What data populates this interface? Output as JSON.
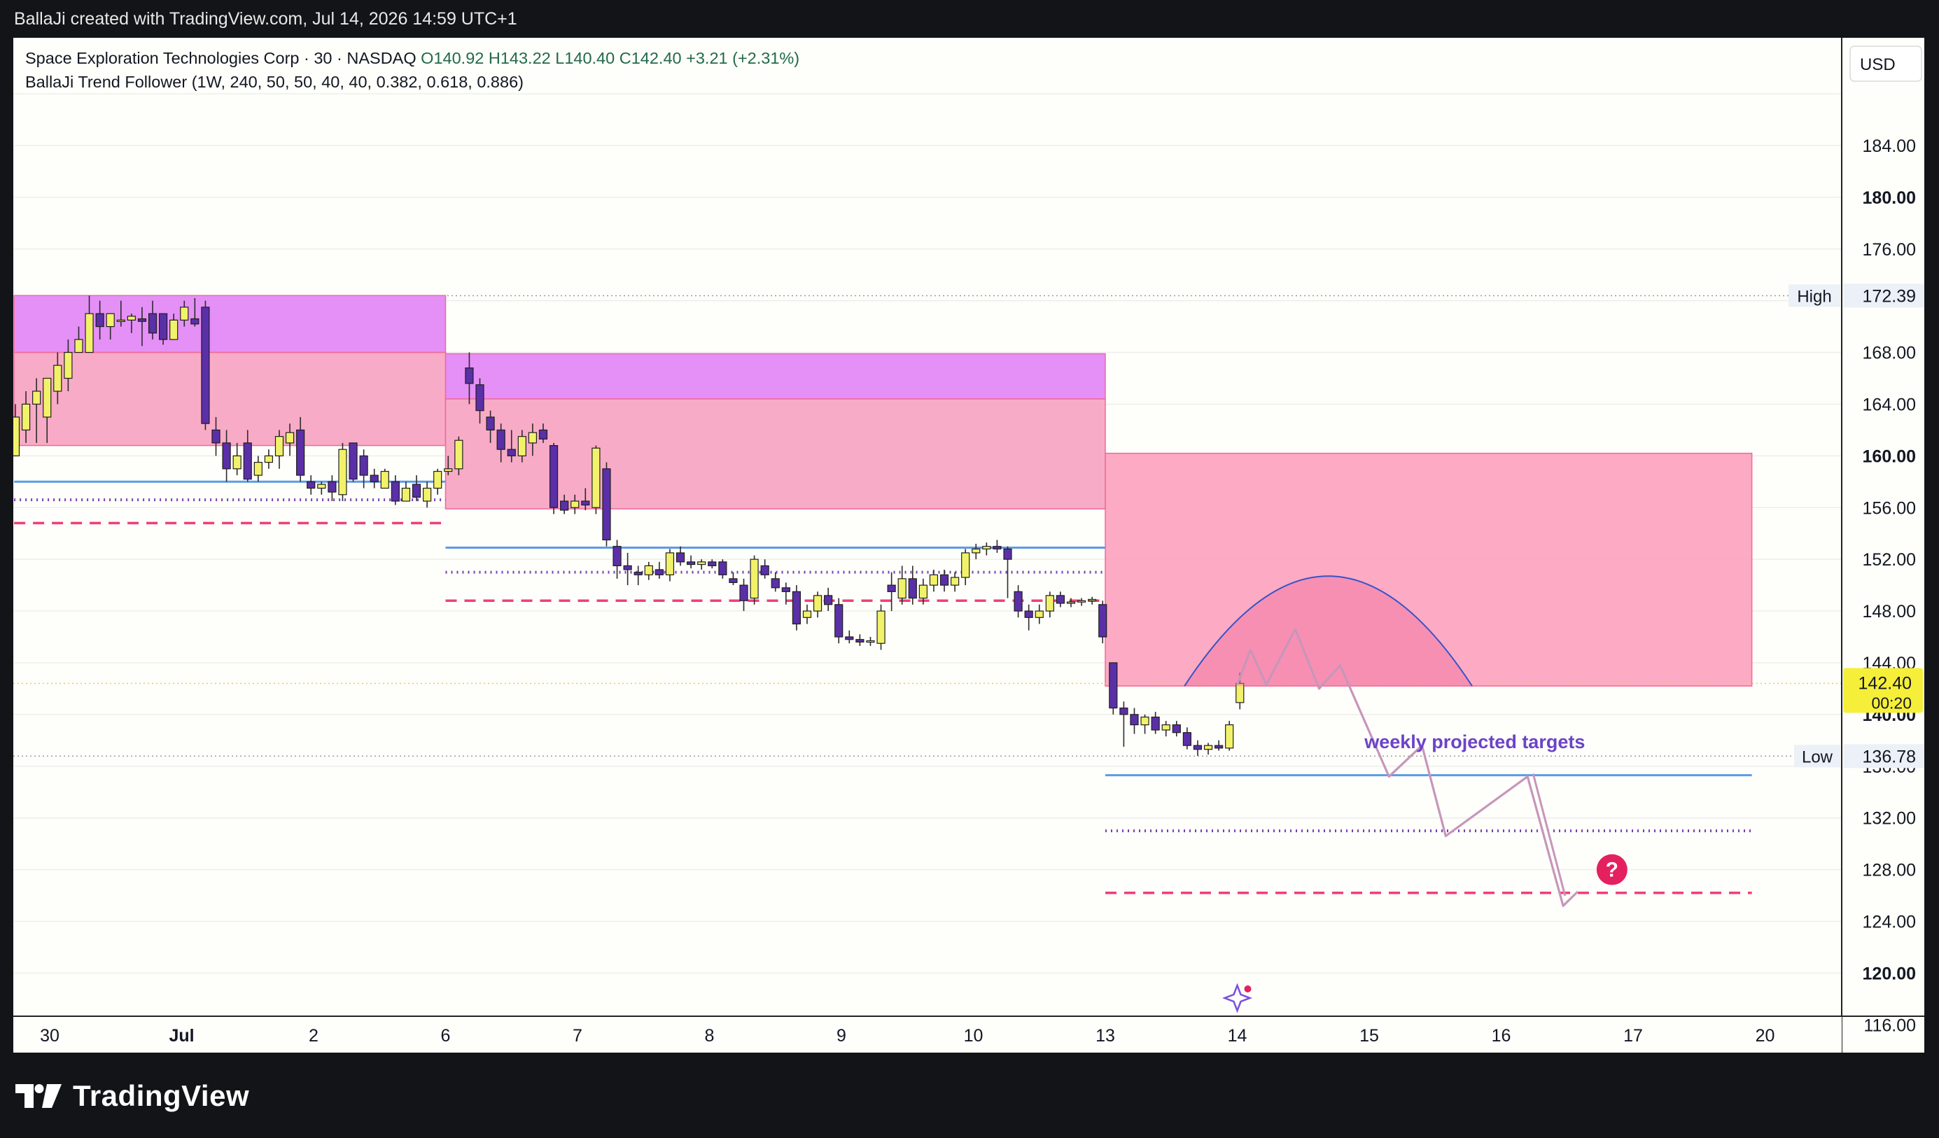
{
  "header": {
    "attribution": "BallaJi created with TradingView.com, Jul 14, 2026 14:59 UTC+1"
  },
  "legend": {
    "symbol": "Space Exploration Technologies Corp · 30 · NASDAQ",
    "open": "O140.92",
    "high": "H143.22",
    "low": "L140.40",
    "close": "C142.40",
    "change": "+3.21 (+2.31%)",
    "indicator": "BallaJi Trend Follower (1W, 240, 50, 50, 40, 40, 0.382, 0.618, 0.886)"
  },
  "currency_button": "USD",
  "footer": {
    "brand": "TradingView"
  },
  "chart_data": {
    "type": "candlestick",
    "currency": "USD",
    "ylim": [
      114,
      190
    ],
    "y_ticks": [
      {
        "value": 184,
        "label": "184.00",
        "bold": false
      },
      {
        "value": 180,
        "label": "180.00",
        "bold": true
      },
      {
        "value": 176,
        "label": "176.00",
        "bold": false
      },
      {
        "value": 168,
        "label": "168.00",
        "bold": false
      },
      {
        "value": 164,
        "label": "164.00",
        "bold": false
      },
      {
        "value": 160,
        "label": "160.00",
        "bold": true
      },
      {
        "value": 156,
        "label": "156.00",
        "bold": false
      },
      {
        "value": 152,
        "label": "152.00",
        "bold": false
      },
      {
        "value": 148,
        "label": "148.00",
        "bold": false
      },
      {
        "value": 144,
        "label": "144.00",
        "bold": false
      },
      {
        "value": 140,
        "label": "140.00",
        "bold": true
      },
      {
        "value": 136,
        "label": "136.00",
        "bold": false
      },
      {
        "value": 132,
        "label": "132.00",
        "bold": false
      },
      {
        "value": 128,
        "label": "128.00",
        "bold": false
      },
      {
        "value": 124,
        "label": "124.00",
        "bold": false
      },
      {
        "value": 120,
        "label": "120.00",
        "bold": true
      },
      {
        "value": 116,
        "label": "116.00",
        "bold": false
      }
    ],
    "x_ticks": [
      {
        "t": 0,
        "label": "30",
        "bold": false
      },
      {
        "t": 1,
        "label": "Jul",
        "bold": true
      },
      {
        "t": 2,
        "label": "2",
        "bold": false
      },
      {
        "t": 3,
        "label": "6",
        "bold": false
      },
      {
        "t": 4,
        "label": "7",
        "bold": false
      },
      {
        "t": 5,
        "label": "8",
        "bold": false
      },
      {
        "t": 6,
        "label": "9",
        "bold": false
      },
      {
        "t": 7,
        "label": "10",
        "bold": false
      },
      {
        "t": 8,
        "label": "13",
        "bold": false
      },
      {
        "t": 9,
        "label": "14",
        "bold": false
      },
      {
        "t": 10,
        "label": "15",
        "bold": false
      },
      {
        "t": 11,
        "label": "16",
        "bold": false
      },
      {
        "t": 12,
        "label": "17",
        "bold": false
      },
      {
        "t": 13,
        "label": "20",
        "bold": false
      }
    ],
    "high_marker": {
      "label": "High",
      "value": 172.39,
      "value_label": "172.39"
    },
    "low_marker": {
      "label": "Low",
      "value": 136.78,
      "value_label": "136.78"
    },
    "last_price": {
      "value": 142.4,
      "value_label": "142.40",
      "countdown": "00:20"
    },
    "zones": [
      {
        "t0": -0.27,
        "t1": 3.0,
        "top": 172.4,
        "bottom": 168.0,
        "color": "#e38af5"
      },
      {
        "t0": -0.27,
        "t1": 3.0,
        "top": 168.0,
        "bottom": 160.8,
        "color": "#f8a6c3"
      },
      {
        "t0": 3.0,
        "t1": 8.0,
        "top": 167.9,
        "bottom": 164.4,
        "color": "#e38af5"
      },
      {
        "t0": 3.0,
        "t1": 8.0,
        "top": 164.4,
        "bottom": 155.9,
        "color": "#f8a6c3"
      },
      {
        "t0": 8.0,
        "t1": 12.9,
        "top": 160.2,
        "bottom": 142.2,
        "color": "#fda5c1"
      }
    ],
    "levels": [
      {
        "t0": -0.27,
        "t1": 3.0,
        "value": 158.0,
        "style": "solid",
        "color": "#5b9be8"
      },
      {
        "t0": -0.27,
        "t1": 3.0,
        "value": 156.6,
        "style": "dotted",
        "color": "#7a3db8"
      },
      {
        "t0": -0.27,
        "t1": 3.0,
        "value": 154.8,
        "style": "dashed",
        "color": "#ef3f78"
      },
      {
        "t0": 3.0,
        "t1": 8.0,
        "value": 152.9,
        "style": "solid",
        "color": "#5b9be8"
      },
      {
        "t0": 3.0,
        "t1": 8.0,
        "value": 151.0,
        "style": "dotted",
        "color": "#7a3db8"
      },
      {
        "t0": 3.0,
        "t1": 8.0,
        "value": 148.8,
        "style": "dashed",
        "color": "#ef3f78"
      },
      {
        "t0": 8.0,
        "t1": 12.9,
        "value": 135.3,
        "style": "solid",
        "color": "#5b9be8"
      },
      {
        "t0": 8.0,
        "t1": 12.9,
        "value": 131.0,
        "style": "dotted",
        "color": "#7a3db8"
      },
      {
        "t0": 8.0,
        "t1": 12.9,
        "value": 126.2,
        "style": "dashed",
        "color": "#ef3f78"
      }
    ],
    "annotation": {
      "text": "weekly projected targets",
      "t": 10.8,
      "value": 137.4,
      "color": "#6b43c8"
    },
    "arc": {
      "t0": 8.6,
      "t1": 10.78,
      "base": 142.2,
      "peak": 150.7,
      "color": "#3554c8"
    },
    "projection_path": [
      {
        "t": 9.0,
        "v": 142.3
      },
      {
        "t": 9.1,
        "v": 145.0
      },
      {
        "t": 9.22,
        "v": 142.3
      },
      {
        "t": 9.44,
        "v": 146.6
      },
      {
        "t": 9.62,
        "v": 142.0
      },
      {
        "t": 9.78,
        "v": 143.8
      },
      {
        "t": 10.15,
        "v": 135.2
      },
      {
        "t": 10.4,
        "v": 137.6
      },
      {
        "t": 10.58,
        "v": 130.6
      },
      {
        "t": 11.2,
        "v": 135.2
      },
      {
        "t": 11.47,
        "v": 125.2
      },
      {
        "t": 11.58,
        "v": 126.3
      }
    ],
    "question_marker": {
      "text": "?",
      "t": 11.84,
      "value": 128.0
    },
    "candles": [
      {
        "t": -0.26,
        "o": 160,
        "h": 164,
        "l": 160,
        "c": 163
      },
      {
        "t": -0.18,
        "o": 162,
        "h": 165,
        "l": 161,
        "c": 164
      },
      {
        "t": -0.1,
        "o": 164,
        "h": 166,
        "l": 161,
        "c": 165
      },
      {
        "t": -0.02,
        "o": 163,
        "h": 166,
        "l": 161,
        "c": 166
      },
      {
        "t": 0.06,
        "o": 165,
        "h": 168,
        "l": 164,
        "c": 167
      },
      {
        "t": 0.14,
        "o": 166,
        "h": 169,
        "l": 165,
        "c": 168
      },
      {
        "t": 0.22,
        "o": 168,
        "h": 170,
        "l": 168,
        "c": 169
      },
      {
        "t": 0.3,
        "o": 168,
        "h": 172.4,
        "l": 168,
        "c": 171
      },
      {
        "t": 0.38,
        "o": 171,
        "h": 172,
        "l": 169,
        "c": 170
      },
      {
        "t": 0.46,
        "o": 170,
        "h": 171,
        "l": 169,
        "c": 171
      },
      {
        "t": 0.54,
        "o": 170.5,
        "h": 172,
        "l": 170,
        "c": 170.5
      },
      {
        "t": 0.62,
        "o": 170.5,
        "h": 171,
        "l": 169.5,
        "c": 170.8
      },
      {
        "t": 0.7,
        "o": 170.6,
        "h": 171.5,
        "l": 168.5,
        "c": 170.4
      },
      {
        "t": 0.78,
        "o": 171,
        "h": 172,
        "l": 169,
        "c": 169.5
      },
      {
        "t": 0.86,
        "o": 171,
        "h": 171,
        "l": 168.6,
        "c": 169
      },
      {
        "t": 0.94,
        "o": 169,
        "h": 171,
        "l": 169,
        "c": 170.5
      },
      {
        "t": 1.02,
        "o": 170.5,
        "h": 172,
        "l": 170,
        "c": 171.5
      },
      {
        "t": 1.1,
        "o": 170.6,
        "h": 172.2,
        "l": 170,
        "c": 170.2
      },
      {
        "t": 1.18,
        "o": 171.5,
        "h": 172,
        "l": 162,
        "c": 162.5
      },
      {
        "t": 1.26,
        "o": 162,
        "h": 163,
        "l": 160,
        "c": 161
      },
      {
        "t": 1.34,
        "o": 161,
        "h": 162,
        "l": 158,
        "c": 159
      },
      {
        "t": 1.42,
        "o": 159,
        "h": 161,
        "l": 158.5,
        "c": 160
      },
      {
        "t": 1.5,
        "o": 161,
        "h": 162,
        "l": 158,
        "c": 158.2
      },
      {
        "t": 1.58,
        "o": 158.5,
        "h": 160,
        "l": 158,
        "c": 159.5
      },
      {
        "t": 1.66,
        "o": 159.5,
        "h": 160.5,
        "l": 159,
        "c": 160
      },
      {
        "t": 1.74,
        "o": 160,
        "h": 162,
        "l": 159,
        "c": 161.5
      },
      {
        "t": 1.82,
        "o": 161,
        "h": 162.5,
        "l": 160,
        "c": 161.8
      },
      {
        "t": 1.9,
        "o": 162,
        "h": 163,
        "l": 158,
        "c": 158.5
      },
      {
        "t": 1.98,
        "o": 158,
        "h": 158.5,
        "l": 157,
        "c": 157.5
      },
      {
        "t": 2.06,
        "o": 157.5,
        "h": 158,
        "l": 157,
        "c": 157.8
      },
      {
        "t": 2.14,
        "o": 158,
        "h": 158.5,
        "l": 156.5,
        "c": 157.2
      },
      {
        "t": 2.22,
        "o": 157,
        "h": 161,
        "l": 156.5,
        "c": 160.5
      },
      {
        "t": 2.3,
        "o": 161,
        "h": 161,
        "l": 158,
        "c": 158.2
      },
      {
        "t": 2.38,
        "o": 160,
        "h": 160.5,
        "l": 157.5,
        "c": 158.5
      },
      {
        "t": 2.46,
        "o": 158.5,
        "h": 159,
        "l": 157.5,
        "c": 158
      },
      {
        "t": 2.54,
        "o": 157.5,
        "h": 159,
        "l": 157.5,
        "c": 158.8
      },
      {
        "t": 2.62,
        "o": 158,
        "h": 158.5,
        "l": 156.2,
        "c": 156.5
      },
      {
        "t": 2.7,
        "o": 156.5,
        "h": 158,
        "l": 156.5,
        "c": 157.5
      },
      {
        "t": 2.78,
        "o": 157.8,
        "h": 158.5,
        "l": 156.5,
        "c": 156.8
      },
      {
        "t": 2.86,
        "o": 156.5,
        "h": 158,
        "l": 156,
        "c": 157.5
      },
      {
        "t": 2.94,
        "o": 157.5,
        "h": 159,
        "l": 157,
        "c": 158.8
      },
      {
        "t": 3.02,
        "o": 158.8,
        "h": 160,
        "l": 158.5,
        "c": 159
      },
      {
        "t": 3.1,
        "o": 159,
        "h": 161.5,
        "l": 158.5,
        "c": 161.2
      },
      {
        "t": 3.18,
        "o": 166.8,
        "h": 168,
        "l": 164,
        "c": 165.6
      },
      {
        "t": 3.26,
        "o": 165.5,
        "h": 166,
        "l": 162.5,
        "c": 163.5
      },
      {
        "t": 3.34,
        "o": 163,
        "h": 163.5,
        "l": 161,
        "c": 162
      },
      {
        "t": 3.42,
        "o": 162,
        "h": 162.5,
        "l": 159.5,
        "c": 160.5
      },
      {
        "t": 3.5,
        "o": 160.5,
        "h": 162,
        "l": 159.5,
        "c": 160
      },
      {
        "t": 3.58,
        "o": 160,
        "h": 162,
        "l": 159.5,
        "c": 161.5
      },
      {
        "t": 3.66,
        "o": 161,
        "h": 162.5,
        "l": 160,
        "c": 161.8
      },
      {
        "t": 3.74,
        "o": 162,
        "h": 162.5,
        "l": 161,
        "c": 161.3
      },
      {
        "t": 3.82,
        "o": 160.8,
        "h": 161,
        "l": 155.5,
        "c": 156
      },
      {
        "t": 3.9,
        "o": 156.5,
        "h": 157,
        "l": 155.5,
        "c": 155.8
      },
      {
        "t": 3.98,
        "o": 156,
        "h": 157,
        "l": 155.5,
        "c": 156.5
      },
      {
        "t": 4.06,
        "o": 156.5,
        "h": 157.5,
        "l": 155.8,
        "c": 156.2
      },
      {
        "t": 4.14,
        "o": 156,
        "h": 160.8,
        "l": 155.5,
        "c": 160.6
      },
      {
        "t": 4.22,
        "o": 159,
        "h": 159.5,
        "l": 153,
        "c": 153.5
      },
      {
        "t": 4.3,
        "o": 153,
        "h": 153.5,
        "l": 150.5,
        "c": 151.5
      },
      {
        "t": 4.38,
        "o": 151.5,
        "h": 152.5,
        "l": 150,
        "c": 151.2
      },
      {
        "t": 4.46,
        "o": 151,
        "h": 151.5,
        "l": 150,
        "c": 150.8
      },
      {
        "t": 4.54,
        "o": 150.8,
        "h": 151.8,
        "l": 150.4,
        "c": 151.5
      },
      {
        "t": 4.62,
        "o": 151.2,
        "h": 151.8,
        "l": 150.5,
        "c": 150.8
      },
      {
        "t": 4.7,
        "o": 150.8,
        "h": 152.8,
        "l": 150.3,
        "c": 152.5
      },
      {
        "t": 4.78,
        "o": 152.5,
        "h": 153,
        "l": 151.5,
        "c": 151.8
      },
      {
        "t": 4.86,
        "o": 151.8,
        "h": 152.3,
        "l": 151.3,
        "c": 151.6
      },
      {
        "t": 4.94,
        "o": 151.6,
        "h": 152,
        "l": 151.2,
        "c": 151.8
      },
      {
        "t": 5.02,
        "o": 151.8,
        "h": 152,
        "l": 151.3,
        "c": 151.5
      },
      {
        "t": 5.1,
        "o": 151.8,
        "h": 152,
        "l": 150.5,
        "c": 150.8
      },
      {
        "t": 5.18,
        "o": 150.5,
        "h": 151,
        "l": 150,
        "c": 150.2
      },
      {
        "t": 5.26,
        "o": 150,
        "h": 150.5,
        "l": 148,
        "c": 148.8
      },
      {
        "t": 5.34,
        "o": 149,
        "h": 152.3,
        "l": 148.5,
        "c": 152
      },
      {
        "t": 5.42,
        "o": 151.5,
        "h": 152,
        "l": 150.5,
        "c": 150.8
      },
      {
        "t": 5.5,
        "o": 150.5,
        "h": 151,
        "l": 149.5,
        "c": 149.8
      },
      {
        "t": 5.58,
        "o": 149.8,
        "h": 150.2,
        "l": 148.5,
        "c": 149.5
      },
      {
        "t": 5.66,
        "o": 149.5,
        "h": 150,
        "l": 146.5,
        "c": 147
      },
      {
        "t": 5.74,
        "o": 147.5,
        "h": 148.5,
        "l": 147,
        "c": 148
      },
      {
        "t": 5.82,
        "o": 148,
        "h": 149.5,
        "l": 147.5,
        "c": 149.2
      },
      {
        "t": 5.9,
        "o": 149.2,
        "h": 149.8,
        "l": 148,
        "c": 148.5
      },
      {
        "t": 5.98,
        "o": 148.5,
        "h": 149,
        "l": 145.5,
        "c": 146
      },
      {
        "t": 6.06,
        "o": 146,
        "h": 146.5,
        "l": 145.5,
        "c": 145.8
      },
      {
        "t": 6.14,
        "o": 145.8,
        "h": 146.2,
        "l": 145.3,
        "c": 145.6
      },
      {
        "t": 6.22,
        "o": 145.6,
        "h": 146,
        "l": 145.3,
        "c": 145.7
      },
      {
        "t": 6.3,
        "o": 145.5,
        "h": 148.5,
        "l": 145,
        "c": 148
      },
      {
        "t": 6.38,
        "o": 150,
        "h": 151,
        "l": 148,
        "c": 149.5
      },
      {
        "t": 6.46,
        "o": 149,
        "h": 151.5,
        "l": 148.5,
        "c": 150.5
      },
      {
        "t": 6.54,
        "o": 150.5,
        "h": 151.5,
        "l": 148.5,
        "c": 149
      },
      {
        "t": 6.62,
        "o": 149,
        "h": 150.5,
        "l": 148.5,
        "c": 150
      },
      {
        "t": 6.7,
        "o": 150,
        "h": 151.2,
        "l": 149.5,
        "c": 150.8
      },
      {
        "t": 6.78,
        "o": 150.8,
        "h": 151.2,
        "l": 149.5,
        "c": 150
      },
      {
        "t": 6.86,
        "o": 150,
        "h": 151,
        "l": 149.5,
        "c": 150.6
      },
      {
        "t": 6.94,
        "o": 150.6,
        "h": 152.8,
        "l": 150,
        "c": 152.5
      },
      {
        "t": 7.02,
        "o": 152.5,
        "h": 153.2,
        "l": 152,
        "c": 152.8
      },
      {
        "t": 7.1,
        "o": 152.8,
        "h": 153.3,
        "l": 152.3,
        "c": 153
      },
      {
        "t": 7.18,
        "o": 153,
        "h": 153.5,
        "l": 152.5,
        "c": 152.8
      },
      {
        "t": 7.26,
        "o": 152.8,
        "h": 153,
        "l": 149,
        "c": 152
      },
      {
        "t": 7.34,
        "o": 149.5,
        "h": 150,
        "l": 147.5,
        "c": 148
      },
      {
        "t": 7.42,
        "o": 148,
        "h": 148.5,
        "l": 146.5,
        "c": 147.5
      },
      {
        "t": 7.5,
        "o": 147.5,
        "h": 148.5,
        "l": 147,
        "c": 148
      },
      {
        "t": 7.58,
        "o": 148,
        "h": 149.5,
        "l": 147.5,
        "c": 149.2
      },
      {
        "t": 7.66,
        "o": 149.2,
        "h": 149.5,
        "l": 148.3,
        "c": 148.6
      },
      {
        "t": 7.74,
        "o": 148.6,
        "h": 149,
        "l": 148.3,
        "c": 148.7
      },
      {
        "t": 7.82,
        "o": 148.7,
        "h": 149,
        "l": 148.4,
        "c": 148.8
      },
      {
        "t": 7.9,
        "o": 148.8,
        "h": 149.1,
        "l": 148.5,
        "c": 148.9
      },
      {
        "t": 7.98,
        "o": 148.5,
        "h": 148.8,
        "l": 145.5,
        "c": 146
      },
      {
        "t": 8.06,
        "o": 144,
        "h": 144,
        "l": 140,
        "c": 140.5
      },
      {
        "t": 8.14,
        "o": 140.5,
        "h": 141,
        "l": 137.5,
        "c": 140
      },
      {
        "t": 8.22,
        "o": 140,
        "h": 140.5,
        "l": 138.5,
        "c": 139.2
      },
      {
        "t": 8.3,
        "o": 139.2,
        "h": 140,
        "l": 138.5,
        "c": 139.8
      },
      {
        "t": 8.38,
        "o": 139.8,
        "h": 140.2,
        "l": 138.5,
        "c": 138.8
      },
      {
        "t": 8.46,
        "o": 138.8,
        "h": 139.5,
        "l": 138.3,
        "c": 139.2
      },
      {
        "t": 8.54,
        "o": 139.2,
        "h": 139.5,
        "l": 138.3,
        "c": 138.6
      },
      {
        "t": 8.62,
        "o": 138.6,
        "h": 139,
        "l": 137.3,
        "c": 137.6
      },
      {
        "t": 8.7,
        "o": 137.6,
        "h": 138,
        "l": 136.8,
        "c": 137.3
      },
      {
        "t": 8.78,
        "o": 137.3,
        "h": 137.8,
        "l": 136.9,
        "c": 137.6
      },
      {
        "t": 8.86,
        "o": 137.6,
        "h": 138,
        "l": 137.2,
        "c": 137.4
      },
      {
        "t": 8.94,
        "o": 137.4,
        "h": 139.5,
        "l": 137.2,
        "c": 139.2
      },
      {
        "t": 9.02,
        "o": 140.92,
        "h": 143.22,
        "l": 140.4,
        "c": 142.4
      }
    ]
  }
}
